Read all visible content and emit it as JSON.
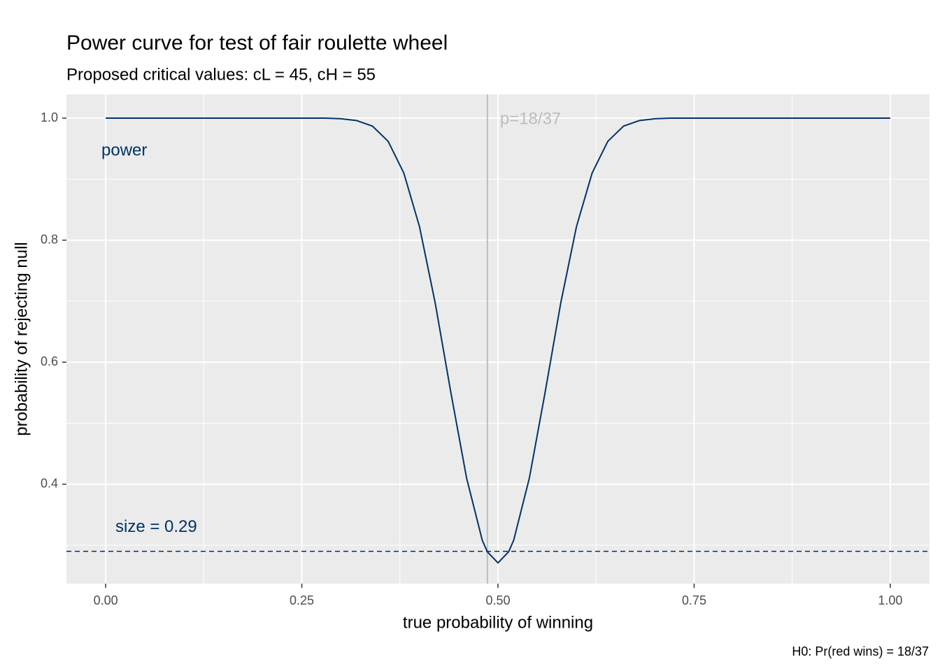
{
  "chart_data": {
    "type": "line",
    "title": "Power curve for test of fair roulette wheel",
    "subtitle": "Proposed critical values: cL = 45, cH = 55",
    "x_label": "true probability of winning",
    "y_label": "probability of rejecting null",
    "caption": "H0: Pr(red wins) = 18/37",
    "x": [
      0,
      0.1,
      0.2,
      0.25,
      0.28,
      0.3,
      0.32,
      0.34,
      0.36,
      0.38,
      0.4,
      0.42,
      0.44,
      0.46,
      0.48,
      0.4865,
      0.5,
      0.5135,
      0.52,
      0.54,
      0.56,
      0.58,
      0.6,
      0.62,
      0.64,
      0.66,
      0.68,
      0.7,
      0.72,
      0.75,
      0.8,
      0.9,
      1.0
    ],
    "series": [
      {
        "name": "power",
        "color": "#003366",
        "values": [
          1,
          1,
          1,
          1,
          1,
          0.999,
          0.996,
          0.987,
          0.962,
          0.91,
          0.822,
          0.697,
          0.55,
          0.41,
          0.308,
          0.289,
          0.271,
          0.289,
          0.308,
          0.41,
          0.55,
          0.697,
          0.822,
          0.91,
          0.962,
          0.987,
          0.996,
          0.999,
          1,
          1,
          1,
          1,
          1
        ]
      }
    ],
    "vline": {
      "value": 0.4865,
      "label": "p=18/37",
      "color": "#bdbdbd"
    },
    "hline": {
      "value": 0.29,
      "label": "size =  0.29",
      "color": "#003366"
    },
    "xlim": [
      -0.05,
      1.05
    ],
    "ylim": [
      0.237,
      1.039
    ],
    "xticks": [
      {
        "value": 0,
        "label": "0.00"
      },
      {
        "value": 0.25,
        "label": "0.25"
      },
      {
        "value": 0.5,
        "label": "0.50"
      },
      {
        "value": 0.75,
        "label": "0.75"
      },
      {
        "value": 1,
        "label": "1.00"
      }
    ],
    "yticks": [
      0.4,
      0.6,
      0.8,
      {
        "value": 1,
        "label": "1.0"
      }
    ],
    "x_minor": [
      0.125,
      0.375,
      0.625,
      0.875
    ],
    "y_minor": [
      0.3,
      0.5,
      0.7,
      0.9
    ],
    "grid": true
  }
}
